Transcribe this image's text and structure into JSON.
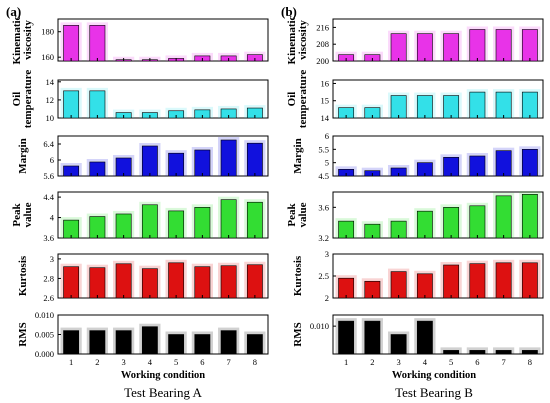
{
  "figure": {
    "panels": [
      {
        "label": "(a)",
        "caption": "Test Bearing A",
        "xlabel": "Working condition"
      },
      {
        "label": "(b)",
        "caption": "Test Bearing B",
        "xlabel": "Working condition"
      }
    ]
  },
  "chart_data": [
    {
      "panel": "a",
      "type": "bar",
      "ylabel": "Kinematic viscosity",
      "color": "#e833e8",
      "categories": [
        "1",
        "2",
        "3",
        "4",
        "5",
        "6",
        "7",
        "8"
      ],
      "values": [
        185,
        185,
        158,
        158,
        159,
        161,
        161,
        162
      ],
      "ylim": [
        157,
        190
      ],
      "yticks": [
        160,
        180
      ],
      "grid": false
    },
    {
      "panel": "a",
      "type": "bar",
      "ylabel": "Oil temperature",
      "color": "#33e0e8",
      "categories": [
        "1",
        "2",
        "3",
        "4",
        "5",
        "6",
        "7",
        "8"
      ],
      "values": [
        13,
        13,
        10.6,
        10.6,
        10.8,
        10.9,
        11,
        11.1
      ],
      "ylim": [
        10,
        14.2
      ],
      "yticks": [
        10,
        12,
        14
      ],
      "grid": false
    },
    {
      "panel": "a",
      "type": "bar",
      "ylabel": "Margin",
      "color": "#1111dd",
      "categories": [
        "1",
        "2",
        "3",
        "4",
        "5",
        "6",
        "7",
        "8"
      ],
      "values": [
        5.85,
        5.95,
        6.05,
        6.35,
        6.17,
        6.25,
        6.5,
        6.42
      ],
      "ylim": [
        5.6,
        6.6
      ],
      "yticks": [
        5.6,
        6.0,
        6.4
      ],
      "grid": false
    },
    {
      "panel": "a",
      "type": "bar",
      "ylabel": "Peak value",
      "color": "#33dd33",
      "categories": [
        "1",
        "2",
        "3",
        "4",
        "5",
        "6",
        "7",
        "8"
      ],
      "values": [
        3.95,
        4.02,
        4.07,
        4.25,
        4.13,
        4.2,
        4.35,
        4.3
      ],
      "ylim": [
        3.6,
        4.5
      ],
      "yticks": [
        3.6,
        4.0,
        4.4
      ],
      "grid": false
    },
    {
      "panel": "a",
      "type": "bar",
      "ylabel": "Kurtosis",
      "color": "#dd1111",
      "categories": [
        "1",
        "2",
        "3",
        "4",
        "5",
        "6",
        "7",
        "8"
      ],
      "values": [
        2.92,
        2.91,
        2.95,
        2.9,
        2.96,
        2.92,
        2.93,
        2.94
      ],
      "ylim": [
        2.6,
        3.05
      ],
      "yticks": [
        2.6,
        2.8,
        3.0
      ],
      "grid": false
    },
    {
      "panel": "a",
      "type": "bar",
      "ylabel": "RMS",
      "color": "#000000",
      "categories": [
        "1",
        "2",
        "3",
        "4",
        "5",
        "6",
        "7",
        "8"
      ],
      "values": [
        0.006,
        0.006,
        0.006,
        0.007,
        0.005,
        0.005,
        0.006,
        0.005
      ],
      "ylim": [
        0,
        0.01
      ],
      "yticks": [
        0.0,
        0.005,
        0.01
      ],
      "ytick_labels": [
        "0.000",
        "0.005",
        "0.010"
      ],
      "grid": false
    },
    {
      "panel": "b",
      "type": "bar",
      "ylabel": "Kinematic viscosity",
      "color": "#e833e8",
      "categories": [
        "1",
        "2",
        "3",
        "4",
        "5",
        "6",
        "7",
        "8"
      ],
      "values": [
        203,
        203,
        213,
        213,
        213,
        215,
        215,
        215
      ],
      "ylim": [
        200,
        220
      ],
      "yticks": [
        200,
        208,
        216
      ],
      "grid": false
    },
    {
      "panel": "b",
      "type": "bar",
      "ylabel": "Oil temperature",
      "color": "#33e0e8",
      "categories": [
        "1",
        "2",
        "3",
        "4",
        "5",
        "6",
        "7",
        "8"
      ],
      "values": [
        14.6,
        14.6,
        15.3,
        15.3,
        15.3,
        15.5,
        15.5,
        15.5
      ],
      "ylim": [
        14,
        16.2
      ],
      "yticks": [
        14,
        15,
        16
      ],
      "grid": false
    },
    {
      "panel": "b",
      "type": "bar",
      "ylabel": "Margin",
      "color": "#1111dd",
      "categories": [
        "1",
        "2",
        "3",
        "4",
        "5",
        "6",
        "7",
        "8"
      ],
      "values": [
        4.75,
        4.7,
        4.8,
        5.0,
        5.2,
        5.25,
        5.45,
        5.5
      ],
      "ylim": [
        4.5,
        6.0
      ],
      "yticks": [
        4.5,
        5.0,
        5.5,
        6.0
      ],
      "grid": false
    },
    {
      "panel": "b",
      "type": "bar",
      "ylabel": "Peak value",
      "color": "#33dd33",
      "categories": [
        "1",
        "2",
        "3",
        "4",
        "5",
        "6",
        "7",
        "8"
      ],
      "values": [
        3.42,
        3.38,
        3.42,
        3.55,
        3.6,
        3.62,
        3.75,
        3.77
      ],
      "ylim": [
        3.2,
        3.8
      ],
      "yticks": [
        3.2,
        3.6
      ],
      "grid": false
    },
    {
      "panel": "b",
      "type": "bar",
      "ylabel": "Kurtosis",
      "color": "#dd1111",
      "categories": [
        "1",
        "2",
        "3",
        "4",
        "5",
        "6",
        "7",
        "8"
      ],
      "values": [
        2.45,
        2.38,
        2.6,
        2.55,
        2.75,
        2.78,
        2.8,
        2.8
      ],
      "ylim": [
        2.0,
        3.0
      ],
      "yticks": [
        2.0,
        2.5,
        3.0
      ],
      "grid": false
    },
    {
      "panel": "b",
      "type": "bar",
      "ylabel": "RMS",
      "color": "#000000",
      "categories": [
        "1",
        "2",
        "3",
        "4",
        "5",
        "6",
        "7",
        "8"
      ],
      "values": [
        0.0118,
        0.0118,
        0.007,
        0.0118,
        0.0013,
        0.0013,
        0.0013,
        0.0013
      ],
      "ylim": [
        0,
        0.014
      ],
      "yticks": [
        0.01
      ],
      "ytick_labels": [
        "0.010"
      ],
      "grid": false
    }
  ]
}
